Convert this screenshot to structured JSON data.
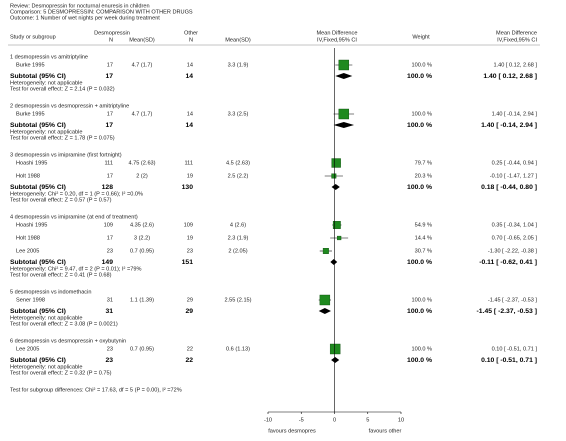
{
  "chart_data": {
    "type": "forest",
    "header": {
      "review": "Review:   Desmopressin for nocturnal enuresis in children",
      "comparison": "Comparison:   5 DESMOPRESSIN: COMPARISON WITH OTHER DRUGS",
      "outcome": "Outcome:   1 Number of wet nights per week during treatment"
    },
    "columns": {
      "study": "Study or subgroup",
      "group1": "Desmopressin",
      "n1": "N",
      "msd1": "Mean(SD)",
      "group2": "Other",
      "n2": "N",
      "msd2": "Mean(SD)",
      "effect": "Mean Difference",
      "method": "IV,Fixed,95% CI",
      "weight": "Weight",
      "effect2": "Mean Difference",
      "method2": "IV,Fixed,95% CI"
    },
    "square_color": "#1f8a1f",
    "xlim": [
      -10,
      10
    ],
    "xticks": [
      -10,
      -5,
      0,
      5,
      10
    ],
    "favours_left": "favours desmopres",
    "favours_right": "favours other",
    "subgroups": [
      {
        "title": "1 desmopressin vs amitriptyline",
        "studies": [
          {
            "name": "Burke 1995",
            "n1": "17",
            "msd1": "4.7 (1.7)",
            "n2": "14",
            "msd2": "3.3 (1.9)",
            "weight": 100.0,
            "weight_label": "100.0 %",
            "ci_label": "1.40 [ 0.12, 2.68 ]",
            "md": 1.4,
            "lo": 0.12,
            "hi": 2.68
          }
        ],
        "subtotal": {
          "label": "Subtotal (95% CI)",
          "n1": "17",
          "n2": "14",
          "weight_label": "100.0 %",
          "ci_label": "1.40 [ 0.12, 2.68 ]",
          "md": 1.4,
          "lo": 0.12,
          "hi": 2.68
        },
        "heterogeneity": "Heterogeneity: not applicable",
        "overall": "Test for overall effect: Z = 2.14 (P = 0.032)"
      },
      {
        "title": "2 desmopressin vs desmopressin + amitriptyline",
        "studies": [
          {
            "name": "Burke 1995",
            "n1": "17",
            "msd1": "4.7 (1.7)",
            "n2": "14",
            "msd2": "3.3 (2.5)",
            "weight": 100.0,
            "weight_label": "100.0 %",
            "ci_label": "1.40 [ -0.14, 2.94 ]",
            "md": 1.4,
            "lo": -0.14,
            "hi": 2.94
          }
        ],
        "subtotal": {
          "label": "Subtotal (95% CI)",
          "n1": "17",
          "n2": "14",
          "weight_label": "100.0 %",
          "ci_label": "1.40 [ -0.14, 2.94 ]",
          "md": 1.4,
          "lo": -0.14,
          "hi": 2.94
        },
        "heterogeneity": "Heterogeneity: not applicable",
        "overall": "Test for overall effect: Z = 1.78 (P = 0.075)"
      },
      {
        "title": "3 desmopressin vs imipramine (first fortnight)",
        "studies": [
          {
            "name": "Hoashi 1995",
            "n1": "111",
            "msd1": "4.75 (2.63)",
            "n2": "111",
            "msd2": "4.5 (2.63)",
            "weight": 79.7,
            "weight_label": "79.7 %",
            "ci_label": "0.25 [ -0.44, 0.94 ]",
            "md": 0.25,
            "lo": -0.44,
            "hi": 0.94
          },
          {
            "name": "Holt 1988",
            "n1": "17",
            "msd1": "2 (2)",
            "n2": "19",
            "msd2": "2.5 (2.2)",
            "weight": 20.3,
            "weight_label": "20.3 %",
            "ci_label": "-0.10 [ -1.47, 1.27 ]",
            "md": -0.1,
            "lo": -1.47,
            "hi": 1.27
          }
        ],
        "subtotal": {
          "label": "Subtotal (95% CI)",
          "n1": "128",
          "n2": "130",
          "weight_label": "100.0 %",
          "ci_label": "0.18 [ -0.44, 0.80 ]",
          "md": 0.18,
          "lo": -0.44,
          "hi": 0.8
        },
        "heterogeneity": "Heterogeneity: Chi² = 0.20, df = 1 (P = 0.66); I² =0.0%",
        "overall": "Test for overall effect: Z = 0.57 (P = 0.57)"
      },
      {
        "title": "4 desmopressin vs imipramine (at end of treatment)",
        "studies": [
          {
            "name": "Hoashi 1995",
            "n1": "109",
            "msd1": "4.35 (2.6)",
            "n2": "109",
            "msd2": "4 (2.6)",
            "weight": 54.9,
            "weight_label": "54.9 %",
            "ci_label": "0.35 [ -0.34, 1.04 ]",
            "md": 0.35,
            "lo": -0.34,
            "hi": 1.04
          },
          {
            "name": "Holt 1988",
            "n1": "17",
            "msd1": "3 (2.2)",
            "n2": "19",
            "msd2": "2.3 (1.9)",
            "weight": 14.4,
            "weight_label": "14.4 %",
            "ci_label": "0.70 [ -0.65, 2.05 ]",
            "md": 0.7,
            "lo": -0.65,
            "hi": 2.05
          },
          {
            "name": "Lee 2005",
            "n1": "23",
            "msd1": "0.7 (0.95)",
            "n2": "23",
            "msd2": "2 (2.05)",
            "weight": 30.7,
            "weight_label": "30.7 %",
            "ci_label": "-1.30 [ -2.22, -0.38 ]",
            "md": -1.3,
            "lo": -2.22,
            "hi": -0.38
          }
        ],
        "subtotal": {
          "label": "Subtotal (95% CI)",
          "n1": "149",
          "n2": "151",
          "weight_label": "100.0 %",
          "ci_label": "-0.11 [ -0.62, 0.41 ]",
          "md": -0.11,
          "lo": -0.62,
          "hi": 0.41
        },
        "heterogeneity": "Heterogeneity: Chi² = 9.47, df = 2 (P = 0.01); I² =79%",
        "overall": "Test for overall effect: Z = 0.41 (P = 0.68)"
      },
      {
        "title": "5 desmopressin vs indomethacin",
        "studies": [
          {
            "name": "Sener 1998",
            "n1": "31",
            "msd1": "1.1 (1.39)",
            "n2": "29",
            "msd2": "2.55 (2.15)",
            "weight": 100.0,
            "weight_label": "100.0 %",
            "ci_label": "-1.45 [ -2.37, -0.53 ]",
            "md": -1.45,
            "lo": -2.37,
            "hi": -0.53
          }
        ],
        "subtotal": {
          "label": "Subtotal (95% CI)",
          "n1": "31",
          "n2": "29",
          "weight_label": "100.0 %",
          "ci_label": "-1.45 [ -2.37, -0.53 ]",
          "md": -1.45,
          "lo": -2.37,
          "hi": -0.53
        },
        "heterogeneity": "Heterogeneity: not applicable",
        "overall": "Test for overall effect: Z = 3.08 (P = 0.0021)"
      },
      {
        "title": "6 desmopressin vs desmopressin + oxybutynin",
        "studies": [
          {
            "name": "Lee 2005",
            "n1": "23",
            "msd1": "0.7 (0.95)",
            "n2": "22",
            "msd2": "0.6 (1.13)",
            "weight": 100.0,
            "weight_label": "100.0 %",
            "ci_label": "0.10 [ -0.51, 0.71 ]",
            "md": 0.1,
            "lo": -0.51,
            "hi": 0.71
          }
        ],
        "subtotal": {
          "label": "Subtotal (95% CI)",
          "n1": "23",
          "n2": "22",
          "weight_label": "100.0 %",
          "ci_label": "0.10 [ -0.51, 0.71 ]",
          "md": 0.1,
          "lo": -0.51,
          "hi": 0.71
        },
        "heterogeneity": "Heterogeneity: not applicable",
        "overall": "Test for overall effect: Z = 0.32 (P = 0.75)"
      }
    ],
    "subgroup_test": "Test for subgroup differences: Chi² = 17.63, df = 5 (P = 0.00), I² =72%"
  }
}
